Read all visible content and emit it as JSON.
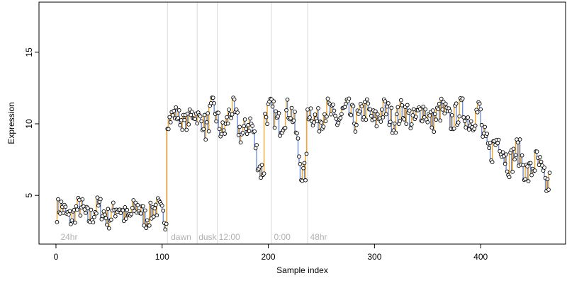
{
  "chart_data": {
    "type": "scatter",
    "title": "",
    "xlabel": "Sample index",
    "ylabel": "Expression",
    "xlim": [
      -16,
      480
    ],
    "ylim": [
      1.6,
      18.5
    ],
    "x_ticks": [
      0,
      100,
      200,
      300,
      400
    ],
    "y_ticks": [
      5,
      10,
      15
    ],
    "grid": false,
    "legend": "none",
    "colors": {
      "points_stroke": "#000000",
      "points_fill": "#ffffff",
      "line_low": "#6f8fd6",
      "line_high": "#f0a830",
      "line_mid": "#a0a0a0",
      "vline": "#d9d9d9",
      "annotation_text": "#b0b0b0"
    },
    "annotations": [
      {
        "x": 3,
        "label": "24hr"
      },
      {
        "x": 107,
        "label": "dawn"
      },
      {
        "x": 133,
        "label": "dusk"
      },
      {
        "x": 152,
        "label": "12:00"
      },
      {
        "x": 204,
        "label": "0:00"
      },
      {
        "x": 238,
        "label": "48hr"
      }
    ],
    "vlines": [
      105,
      133,
      152,
      203,
      237
    ],
    "segments": [
      {
        "x_start": 1,
        "x_end": 104,
        "base": 3.8,
        "noise": 0.8,
        "wiggle": 0.4
      },
      {
        "x_start": 105,
        "x_end": 140,
        "base": 10.4,
        "noise": 0.6,
        "wiggle": 0.3
      },
      {
        "x_start": 141,
        "x_end": 196,
        "base": 10.2,
        "noise": 0.9,
        "wiggle": 0.8,
        "dip_center": 196,
        "dip_depth": 2.8,
        "dip_width": 12
      },
      {
        "x_start": 197,
        "x_end": 236,
        "base": 10.5,
        "noise": 0.9,
        "wiggle": 0.5,
        "dip_center": 234,
        "dip_depth": 4.2,
        "dip_width": 6
      },
      {
        "x_start": 237,
        "x_end": 400,
        "base": 10.6,
        "noise": 0.9,
        "wiggle": 0.4
      },
      {
        "x_start": 401,
        "x_end": 465,
        "base": 9.0,
        "noise": 1.0,
        "wiggle": 0.6,
        "trend_end": 6.2
      }
    ],
    "n_points": 465
  }
}
